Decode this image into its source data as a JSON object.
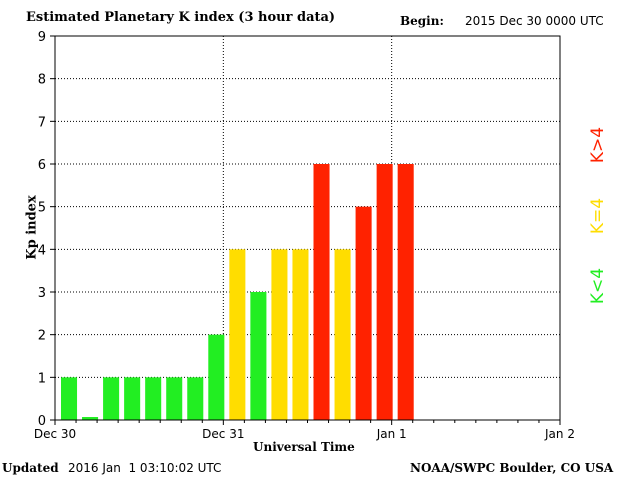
{
  "header": {
    "title": "Estimated Planetary K index (3 hour data)",
    "begin_label": "Begin:",
    "begin_value": "2015 Dec 30 0000 UTC"
  },
  "footer": {
    "updated_label": "Updated",
    "updated_value": "2016 Jan  1 03:10:02 UTC",
    "source": "NOAA/SWPC Boulder, CO USA"
  },
  "legend": {
    "below": "K<4",
    "equal": "K=4",
    "above": "K>4"
  },
  "colors": {
    "low": "#22ee22",
    "mid": "#ffdd00",
    "high": "#ff2200",
    "grid": "#000000"
  },
  "chart_data": {
    "type": "bar",
    "title": "Estimated Planetary K index (3 hour data)",
    "xlabel": "Universal Time",
    "ylabel": "Kp index",
    "ylim": [
      0,
      9
    ],
    "yticks": [
      0,
      1,
      2,
      3,
      4,
      5,
      6,
      7,
      8,
      9
    ],
    "xtick_labels": [
      "Dec 30",
      "Dec 31",
      "Jan 1",
      "Jan 2"
    ],
    "interval_hours": 3,
    "grid": true,
    "values": [
      1,
      0.07,
      1,
      1,
      1,
      1,
      1,
      2,
      4,
      3,
      4,
      4,
      6,
      4,
      5,
      6,
      6
    ]
  }
}
